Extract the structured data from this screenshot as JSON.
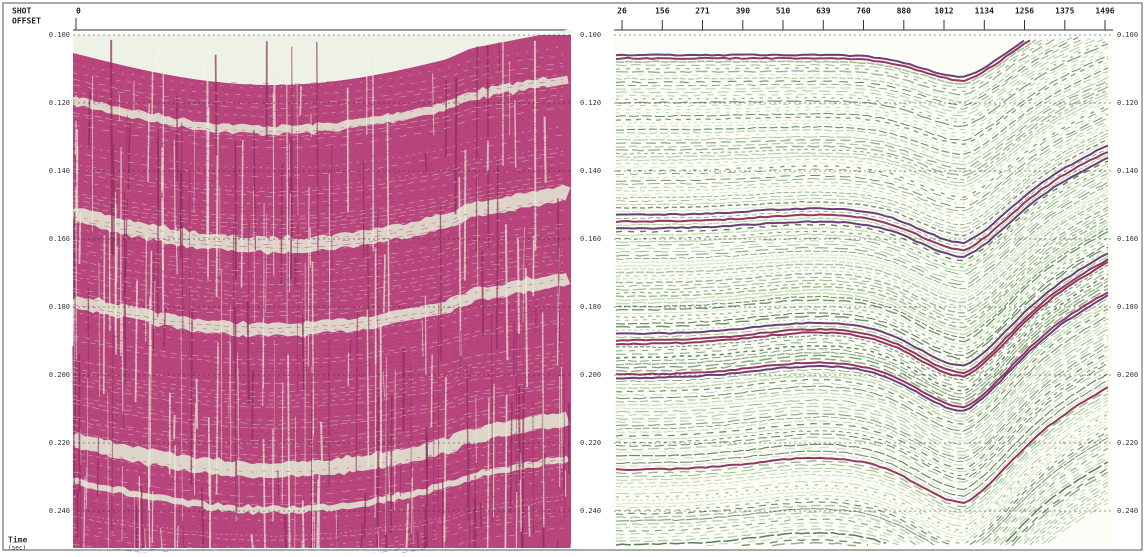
{
  "left_panel": {
    "header": [
      "SHOT",
      "OFFSET"
    ],
    "top_label": "0",
    "y_labels": [
      "0.100",
      "0.120",
      "0.140",
      "0.160",
      "0.180",
      "0.200",
      "0.220",
      "0.240"
    ]
  },
  "right_panel": {
    "top_labels": [
      "26",
      "156",
      "271",
      "390",
      "510",
      "639",
      "760",
      "880",
      "1012",
      "1134",
      "1256",
      "1375",
      "1496"
    ],
    "y_labels": [
      "0.100",
      "0.120",
      "0.140",
      "0.160",
      "0.180",
      "0.200",
      "0.220",
      "0.240"
    ],
    "right_y_labels": [
      "0.100",
      "0.120",
      "0.140",
      "0.160",
      "0.180",
      "0.200",
      "0.220",
      "0.240"
    ]
  },
  "footer": {
    "axis_title": "Time",
    "unit": "(sec)"
  }
}
